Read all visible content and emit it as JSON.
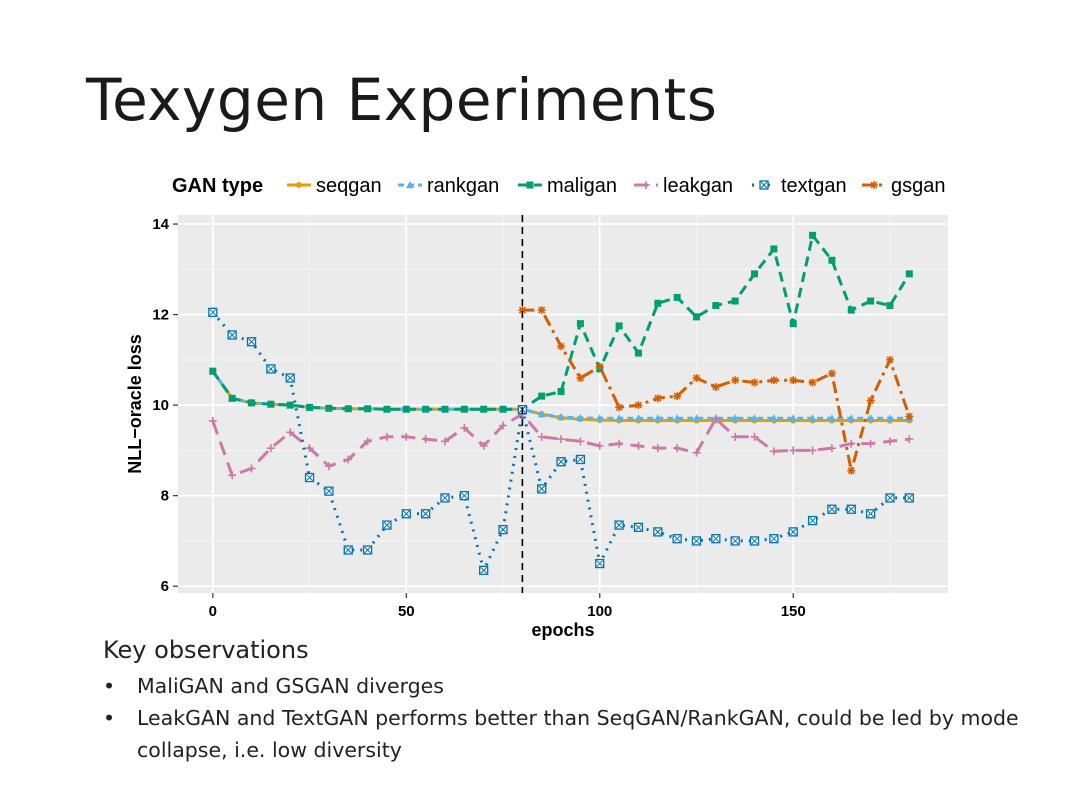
{
  "slide": {
    "title": "Texygen Experiments",
    "observations_heading": "Key observations",
    "observations": [
      "MaliGAN and GSGAN diverges",
      "LeakGAN and TextGAN performs better than SeqGAN/RankGAN, could be led by mode collapse, i.e. low diversity"
    ]
  },
  "chart_data": {
    "type": "line",
    "legend_title": "GAN type",
    "legend_position": "top",
    "xlabel": "epochs",
    "ylabel": "NLL−oracle loss",
    "xlim": [
      -9,
      190
    ],
    "ylim": [
      5.85,
      14.2
    ],
    "xticks": [
      0,
      50,
      100,
      150
    ],
    "yticks": [
      6,
      8,
      10,
      12,
      14
    ],
    "grid": true,
    "vline": 80,
    "series": [
      {
        "name": "seqgan",
        "color": "#E69F00",
        "dash": "solid",
        "marker": "circle",
        "x": [
          0,
          5,
          10,
          15,
          20,
          25,
          30,
          35,
          40,
          45,
          50,
          55,
          60,
          65,
          70,
          75,
          80,
          85,
          90,
          95,
          100,
          105,
          110,
          115,
          120,
          125,
          130,
          135,
          140,
          145,
          150,
          155,
          160,
          165,
          170,
          175,
          180
        ],
        "y": [
          10.75,
          10.15,
          10.05,
          10.02,
          10.0,
          9.95,
          9.93,
          9.92,
          9.92,
          9.91,
          9.91,
          9.91,
          9.91,
          9.91,
          9.91,
          9.91,
          9.91,
          9.8,
          9.72,
          9.69,
          9.67,
          9.66,
          9.66,
          9.66,
          9.66,
          9.66,
          9.66,
          9.66,
          9.66,
          9.66,
          9.66,
          9.66,
          9.66,
          9.66,
          9.66,
          9.66,
          9.66
        ]
      },
      {
        "name": "rankgan",
        "color": "#56B4E9",
        "dash": "6,4",
        "marker": "triangle",
        "x": [
          0,
          5,
          10,
          15,
          20,
          25,
          30,
          35,
          40,
          45,
          50,
          55,
          60,
          65,
          70,
          75,
          80,
          85,
          90,
          95,
          100,
          105,
          110,
          115,
          120,
          125,
          130,
          135,
          140,
          145,
          150,
          155,
          160,
          165,
          170,
          175,
          180
        ],
        "y": [
          10.75,
          10.15,
          10.05,
          10.02,
          10.0,
          9.95,
          9.93,
          9.92,
          9.92,
          9.91,
          9.91,
          9.91,
          9.91,
          9.91,
          9.91,
          9.91,
          9.91,
          9.8,
          9.74,
          9.72,
          9.71,
          9.71,
          9.71,
          9.71,
          9.71,
          9.71,
          9.71,
          9.71,
          9.71,
          9.71,
          9.71,
          9.71,
          9.71,
          9.71,
          9.71,
          9.71,
          9.71
        ]
      },
      {
        "name": "maligan",
        "color": "#009E73",
        "dash": "10,6",
        "marker": "square",
        "x": [
          0,
          5,
          10,
          15,
          20,
          25,
          30,
          35,
          40,
          45,
          50,
          55,
          60,
          65,
          70,
          75,
          80,
          85,
          90,
          95,
          100,
          105,
          110,
          115,
          120,
          125,
          130,
          135,
          140,
          145,
          150,
          155,
          160,
          165,
          170,
          175,
          180
        ],
        "y": [
          10.75,
          10.15,
          10.05,
          10.02,
          10.0,
          9.95,
          9.93,
          9.92,
          9.92,
          9.91,
          9.91,
          9.91,
          9.91,
          9.91,
          9.91,
          9.91,
          9.91,
          10.2,
          10.3,
          11.8,
          10.8,
          11.75,
          11.15,
          12.25,
          12.38,
          11.95,
          12.2,
          12.3,
          12.9,
          13.45,
          11.8,
          13.75,
          13.2,
          12.1,
          12.3,
          12.2,
          12.9
        ]
      },
      {
        "name": "leakgan",
        "color": "#CC79A7",
        "dash": "14,8",
        "marker": "plus",
        "x": [
          0,
          5,
          10,
          15,
          20,
          25,
          30,
          35,
          40,
          45,
          50,
          55,
          60,
          65,
          70,
          75,
          80,
          85,
          90,
          95,
          100,
          105,
          110,
          115,
          120,
          125,
          130,
          135,
          140,
          145,
          150,
          155,
          160,
          165,
          170,
          175,
          180
        ],
        "y": [
          9.65,
          8.45,
          8.6,
          9.05,
          9.4,
          9.05,
          8.65,
          8.8,
          9.2,
          9.3,
          9.3,
          9.25,
          9.2,
          9.5,
          9.1,
          9.55,
          9.8,
          9.3,
          9.25,
          9.2,
          9.1,
          9.15,
          9.1,
          9.05,
          9.05,
          8.95,
          9.7,
          9.3,
          9.3,
          8.98,
          9.0,
          9.0,
          9.05,
          9.15,
          9.15,
          9.2,
          9.25
        ]
      },
      {
        "name": "textgan",
        "color": "#0072B2",
        "dash": "2,6",
        "marker": "boxx",
        "x": [
          0,
          5,
          10,
          15,
          20,
          25,
          30,
          35,
          40,
          45,
          50,
          55,
          60,
          65,
          70,
          75,
          80,
          85,
          90,
          95,
          100,
          105,
          110,
          115,
          120,
          125,
          130,
          135,
          140,
          145,
          150,
          155,
          160,
          165,
          170,
          175,
          180
        ],
        "y": [
          12.05,
          11.55,
          11.4,
          10.8,
          10.6,
          8.4,
          8.1,
          6.8,
          6.8,
          7.35,
          7.6,
          7.6,
          7.95,
          8.0,
          6.35,
          7.25,
          9.9,
          8.15,
          8.75,
          8.8,
          6.5,
          7.35,
          7.3,
          7.2,
          7.05,
          7.0,
          7.05,
          7.0,
          7.0,
          7.05,
          7.2,
          7.45,
          7.7,
          7.7,
          7.6,
          7.95,
          7.95
        ]
      },
      {
        "name": "gsgan",
        "color": "#D55E00",
        "dash": "12,5,3,5",
        "marker": "asterisk",
        "x": [
          80,
          85,
          90,
          95,
          100,
          105,
          110,
          115,
          120,
          125,
          130,
          135,
          140,
          145,
          150,
          155,
          160,
          165,
          170,
          175,
          180
        ],
        "y": [
          12.1,
          12.1,
          11.3,
          10.6,
          10.85,
          9.95,
          10.0,
          10.15,
          10.2,
          10.6,
          10.4,
          10.55,
          10.5,
          10.55,
          10.55,
          10.5,
          10.7,
          8.55,
          10.1,
          11.0,
          9.75
        ]
      }
    ]
  }
}
